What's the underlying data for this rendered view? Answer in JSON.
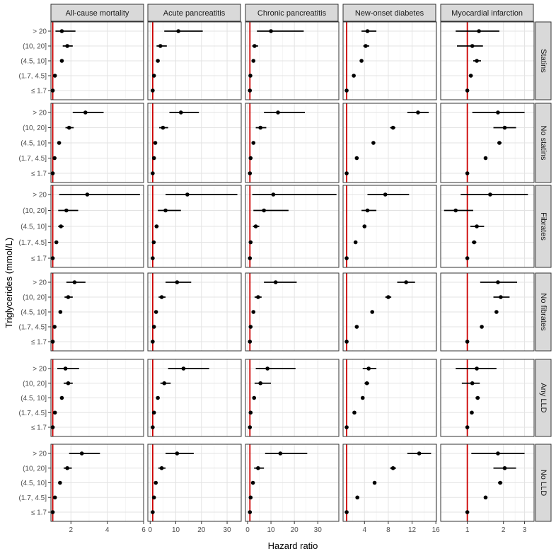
{
  "chart_data": {
    "type": "forest-plot",
    "xlabel": "Hazard ratio",
    "ylabel": "Triglycerides (mmol/L)",
    "categories": [
      "> 20",
      "(10, 20]",
      "(4.5, 10]",
      "(1.7, 4.5]",
      "≤ 1.7"
    ],
    "reference_line": {
      "x": 1,
      "color": "#cc0000"
    },
    "outcomes": [
      "All-cause mortality",
      "Acute pancreatitis",
      "Chronic pancreatitis",
      "New-onset diabetes",
      "Myocardial infarction"
    ],
    "groups": [
      "Statins",
      "No statins",
      "Fibrates",
      "No fibrates",
      "Any LLD",
      "No LLD"
    ],
    "columns": [
      {
        "name": "All-cause mortality",
        "scale": "linear",
        "xlim": [
          0.9,
          6.0
        ],
        "ticks": [
          2,
          4,
          6
        ],
        "tick_labels": [
          "2",
          "4",
          "6"
        ]
      },
      {
        "name": "Acute pancreatitis",
        "scale": "linear",
        "xlim": [
          -0.9,
          35.5
        ],
        "ticks": [
          0,
          10,
          20,
          30
        ],
        "tick_labels": [
          "0",
          "10",
          "20",
          "30"
        ]
      },
      {
        "name": "Chronic pancreatitis",
        "scale": "linear",
        "xlim": [
          -0.9,
          39
        ],
        "ticks": [
          0,
          10,
          20,
          30
        ],
        "tick_labels": [
          "0",
          "10",
          "20",
          "30"
        ]
      },
      {
        "name": "New-onset diabetes",
        "scale": "linear",
        "xlim": [
          0.4,
          16.1
        ],
        "ticks": [
          4,
          8,
          12,
          16
        ],
        "tick_labels": [
          "4",
          "8",
          "12",
          "16"
        ]
      },
      {
        "name": "Myocardial infarction",
        "scale": "log",
        "xlim": [
          0.6,
          3.6
        ],
        "ticks": [
          1,
          2,
          3
        ],
        "tick_labels": [
          "1",
          "2",
          "3"
        ]
      }
    ],
    "rows": [
      {
        "group": "Statins",
        "cells": [
          [
            [
              1.5,
              1.15,
              2.25
            ],
            [
              1.8,
              1.55,
              2.1
            ],
            [
              1.5,
              1.45,
              1.6
            ],
            [
              1.12,
              1.05,
              1.18
            ],
            [
              1,
              1,
              1
            ]
          ],
          [
            [
              11,
              5.5,
              20.5
            ],
            [
              4,
              2.5,
              6.5
            ],
            [
              3,
              2.5,
              3.5
            ],
            [
              1.5,
              1.2,
              1.8
            ],
            [
              1,
              1,
              1
            ]
          ],
          [
            [
              10,
              4,
              24
            ],
            [
              3,
              2,
              4.5
            ],
            [
              2.5,
              2,
              3
            ],
            [
              1.2,
              1,
              1.4
            ],
            [
              1,
              1,
              1
            ]
          ],
          [
            [
              4.5,
              3.5,
              6
            ],
            [
              4.2,
              3.8,
              4.8
            ],
            [
              3.5,
              3.3,
              3.7
            ],
            [
              2.2,
              2,
              2.4
            ],
            [
              1,
              1,
              1
            ]
          ],
          [
            [
              1.25,
              0.8,
              1.85
            ],
            [
              1.1,
              0.82,
              1.35
            ],
            [
              1.2,
              1.12,
              1.3
            ],
            [
              1.07,
              1.03,
              1.11
            ],
            [
              1,
              1,
              1
            ]
          ]
        ]
      },
      {
        "group": "No statins",
        "cells": [
          [
            [
              2.8,
              2.1,
              3.8
            ],
            [
              1.9,
              1.7,
              2.15
            ],
            [
              1.35,
              1.3,
              1.45
            ],
            [
              1.1,
              1.05,
              1.15
            ],
            [
              1,
              1,
              1
            ]
          ],
          [
            [
              12,
              7.5,
              19
            ],
            [
              5,
              3.5,
              7
            ],
            [
              2,
              1.8,
              2.3
            ],
            [
              1.5,
              1.3,
              1.7
            ],
            [
              1,
              1,
              1
            ]
          ],
          [
            [
              13,
              7,
              24.5
            ],
            [
              5.5,
              3.5,
              8
            ],
            [
              2.5,
              2,
              3
            ],
            [
              1.3,
              1.1,
              1.5
            ],
            [
              1,
              1,
              1
            ]
          ],
          [
            [
              13,
              11.2,
              14.8
            ],
            [
              8.8,
              8.3,
              9.2
            ],
            [
              5.5,
              5.3,
              5.7
            ],
            [
              2.7,
              2.5,
              2.9
            ],
            [
              1,
              1,
              1
            ]
          ],
          [
            [
              1.8,
              1.1,
              3.0
            ],
            [
              2.05,
              1.65,
              2.55
            ],
            [
              1.85,
              1.78,
              1.93
            ],
            [
              1.42,
              1.38,
              1.46
            ],
            [
              1,
              1,
              1
            ]
          ]
        ]
      },
      {
        "group": "Fibrates",
        "cells": [
          [
            [
              2.9,
              1.35,
              5.8
            ],
            [
              1.75,
              1.3,
              2.4
            ],
            [
              1.45,
              1.3,
              1.6
            ],
            [
              1.2,
              1.15,
              1.25
            ],
            [
              1,
              1,
              1
            ]
          ],
          [
            [
              14.5,
              6,
              34
            ],
            [
              6,
              3,
              12
            ],
            [
              2.5,
              1.8,
              3.3
            ],
            [
              1.4,
              1.2,
              1.6
            ],
            [
              1,
              1,
              1
            ]
          ],
          [
            [
              11,
              2,
              38
            ],
            [
              7,
              2.5,
              17.5
            ],
            [
              3.5,
              2.3,
              5
            ],
            [
              1.3,
              1.1,
              1.5
            ],
            [
              1,
              1,
              1
            ]
          ],
          [
            [
              7.5,
              4.5,
              11.5
            ],
            [
              4.5,
              3.5,
              6
            ],
            [
              4,
              3.7,
              4.3
            ],
            [
              2.5,
              2.3,
              2.7
            ],
            [
              1,
              1,
              1
            ]
          ],
          [
            [
              1.55,
              0.88,
              3.2
            ],
            [
              0.8,
              0.64,
              1.12
            ],
            [
              1.2,
              1.06,
              1.38
            ],
            [
              1.14,
              1.09,
              1.19
            ],
            [
              1,
              1,
              1
            ]
          ]
        ]
      },
      {
        "group": "No fibrates",
        "cells": [
          [
            [
              2.2,
              1.75,
              2.8
            ],
            [
              1.85,
              1.65,
              2.1
            ],
            [
              1.42,
              1.37,
              1.47
            ],
            [
              1.1,
              1.05,
              1.15
            ],
            [
              1,
              1,
              1
            ]
          ],
          [
            [
              10.5,
              6,
              16
            ],
            [
              4.5,
              3.3,
              6
            ],
            [
              2.3,
              2.1,
              2.5
            ],
            [
              1.5,
              1.3,
              1.7
            ],
            [
              1,
              1,
              1
            ]
          ],
          [
            [
              12,
              7,
              21
            ],
            [
              4.5,
              3,
              6
            ],
            [
              2.5,
              2.2,
              2.8
            ],
            [
              1.3,
              1.1,
              1.5
            ],
            [
              1,
              1,
              1
            ]
          ],
          [
            [
              11,
              9.5,
              12.5
            ],
            [
              8,
              7.5,
              8.5
            ],
            [
              5.3,
              5.1,
              5.5
            ],
            [
              2.7,
              2.5,
              2.9
            ],
            [
              1,
              1,
              1
            ]
          ],
          [
            [
              1.8,
              1.28,
              2.6
            ],
            [
              1.9,
              1.65,
              2.25
            ],
            [
              1.75,
              1.7,
              1.8
            ],
            [
              1.32,
              1.28,
              1.36
            ],
            [
              1,
              1,
              1
            ]
          ]
        ]
      },
      {
        "group": "Any LLD",
        "cells": [
          [
            [
              1.7,
              1.25,
              2.45
            ],
            [
              1.85,
              1.6,
              2.1
            ],
            [
              1.5,
              1.45,
              1.55
            ],
            [
              1.12,
              1.07,
              1.17
            ],
            [
              1,
              1,
              1
            ]
          ],
          [
            [
              13,
              7,
              23
            ],
            [
              5.5,
              4,
              8
            ],
            [
              3,
              2.7,
              3.3
            ],
            [
              1.5,
              1.3,
              1.7
            ],
            [
              1,
              1,
              1
            ]
          ],
          [
            [
              8.5,
              3.5,
              20.5
            ],
            [
              5.5,
              3,
              10
            ],
            [
              2.8,
              2.4,
              3.2
            ],
            [
              1.3,
              1.1,
              1.5
            ],
            [
              1,
              1,
              1
            ]
          ],
          [
            [
              4.7,
              3.7,
              6
            ],
            [
              4.4,
              4,
              4.8
            ],
            [
              3.7,
              3.5,
              3.9
            ],
            [
              2.3,
              2.1,
              2.5
            ],
            [
              1,
              1,
              1
            ]
          ],
          [
            [
              1.2,
              0.8,
              1.75
            ],
            [
              1.1,
              0.9,
              1.27
            ],
            [
              1.22,
              1.17,
              1.27
            ],
            [
              1.09,
              1.06,
              1.12
            ],
            [
              1,
              1,
              1
            ]
          ]
        ]
      },
      {
        "group": "No LLD",
        "cells": [
          [
            [
              2.6,
              1.9,
              3.6
            ],
            [
              1.8,
              1.6,
              2.05
            ],
            [
              1.4,
              1.35,
              1.45
            ],
            [
              1.12,
              1.07,
              1.17
            ],
            [
              1,
              1,
              1
            ]
          ],
          [
            [
              10.5,
              6,
              17
            ],
            [
              4.5,
              3.2,
              6
            ],
            [
              2.2,
              2,
              2.4
            ],
            [
              1.5,
              1.3,
              1.7
            ],
            [
              1,
              1,
              1
            ]
          ],
          [
            [
              14,
              7.5,
              25.5
            ],
            [
              4.5,
              2.8,
              7
            ],
            [
              2.3,
              2,
              2.6
            ],
            [
              1.3,
              1.1,
              1.5
            ],
            [
              1,
              1,
              1
            ]
          ],
          [
            [
              13.2,
              11.2,
              15.2
            ],
            [
              8.8,
              8.3,
              9.3
            ],
            [
              5.7,
              5.5,
              5.9
            ],
            [
              2.8,
              2.6,
              3
            ],
            [
              1,
              1,
              1
            ]
          ],
          [
            [
              1.8,
              1.08,
              3.0
            ],
            [
              2.05,
              1.65,
              2.55
            ],
            [
              1.88,
              1.8,
              1.96
            ],
            [
              1.42,
              1.38,
              1.46
            ],
            [
              1,
              1,
              1
            ]
          ]
        ]
      }
    ]
  }
}
